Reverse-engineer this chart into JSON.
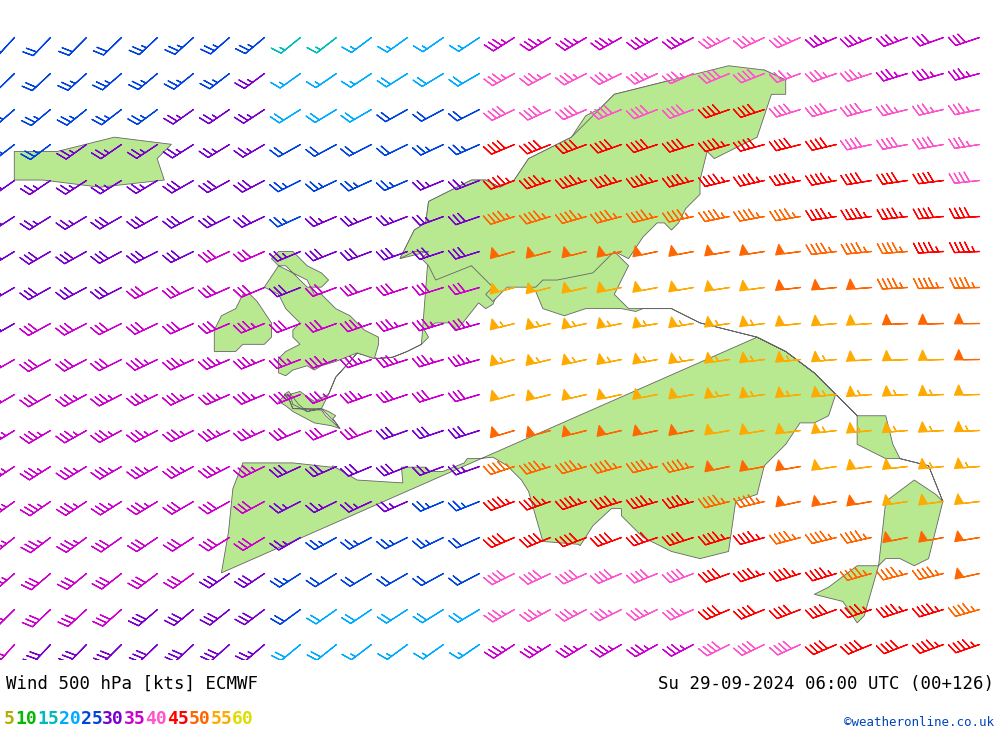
{
  "title_left": "Wind 500 hPa [kts] ECMWF",
  "title_right": "Su 29-09-2024 06:00 UTC (00+126)",
  "copyright": "©weatheronline.co.uk",
  "legend_values": [
    5,
    10,
    15,
    20,
    25,
    30,
    35,
    40,
    45,
    50,
    55,
    60
  ],
  "legend_colors": [
    "#b0b000",
    "#00bb00",
    "#00bbbb",
    "#00aaff",
    "#0044dd",
    "#7700cc",
    "#cc00cc",
    "#ff55cc",
    "#ff0000",
    "#ff6600",
    "#ffaa00",
    "#dddd00"
  ],
  "background_color": "#d8d8d8",
  "land_color": "#b8e890",
  "border_color": "#666666",
  "figsize": [
    10.0,
    7.33
  ],
  "dpi": 100,
  "map_xlim": [
    -25,
    45
  ],
  "map_ylim": [
    30,
    75
  ],
  "barb_grid_lon": 2.5,
  "barb_grid_lat": 2.5
}
